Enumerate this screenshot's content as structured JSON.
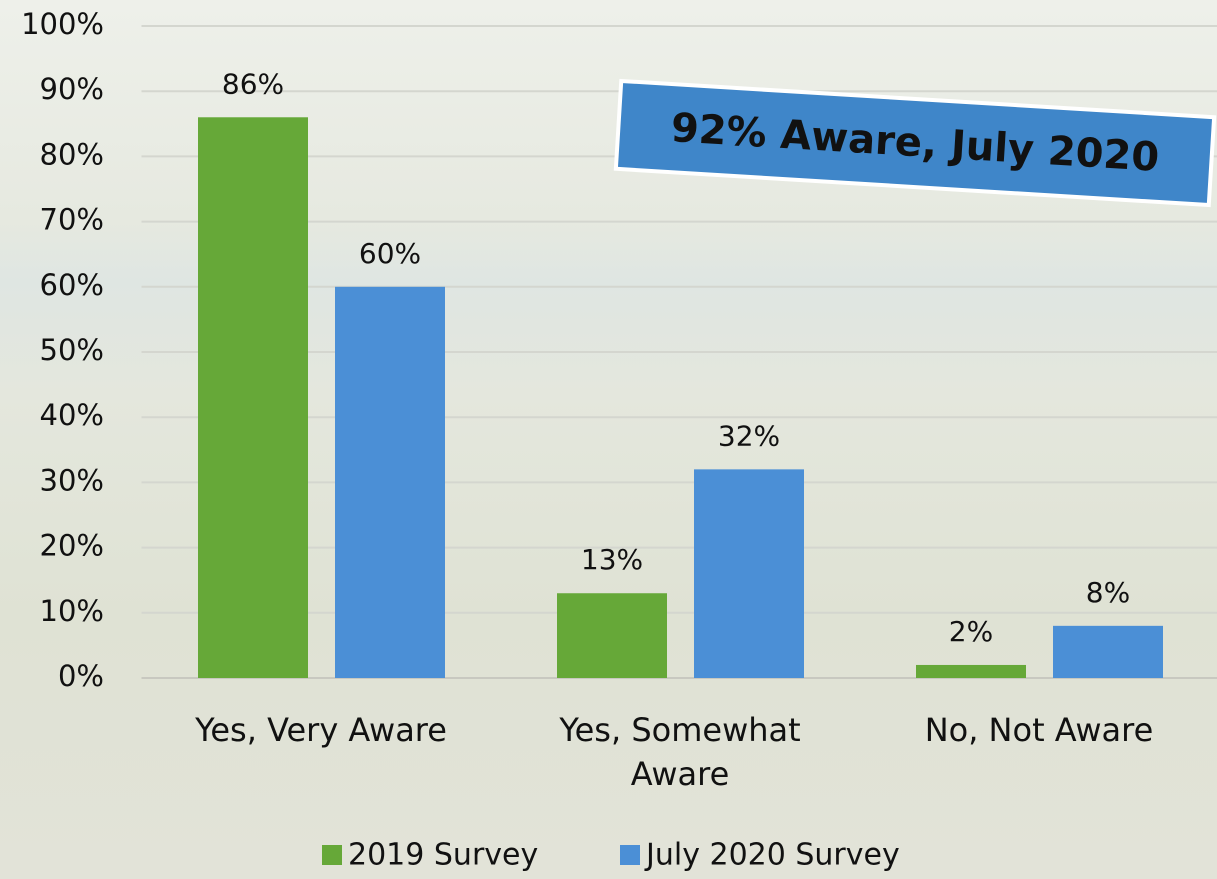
{
  "chart_data": {
    "type": "bar",
    "categories": [
      "Yes, Very Aware",
      "Yes, Somewhat Aware",
      "No, Not Aware"
    ],
    "series": [
      {
        "name": "2019 Survey",
        "color": "#66a838",
        "values": [
          86,
          13,
          2
        ],
        "value_labels": [
          "86%",
          "13%",
          "2%"
        ]
      },
      {
        "name": "July 2020 Survey",
        "color": "#4b8fd6",
        "values": [
          60,
          32,
          8
        ],
        "value_labels": [
          "60%",
          "32%",
          "8%"
        ]
      }
    ],
    "ylim": [
      0,
      100
    ],
    "yticks": [
      {
        "value": 0,
        "label": "0%"
      },
      {
        "value": 10,
        "label": "10%"
      },
      {
        "value": 20,
        "label": "20%"
      },
      {
        "value": 30,
        "label": "30%"
      },
      {
        "value": 40,
        "label": "40%"
      },
      {
        "value": 50,
        "label": "50%"
      },
      {
        "value": 60,
        "label": "60%"
      },
      {
        "value": 70,
        "label": "70%"
      },
      {
        "value": 80,
        "label": "80%"
      },
      {
        "value": 90,
        "label": "90%"
      },
      {
        "value": 100,
        "label": "100%"
      }
    ],
    "grid": true,
    "legend": "bottom",
    "annotation": "92% Aware, July 2020"
  }
}
